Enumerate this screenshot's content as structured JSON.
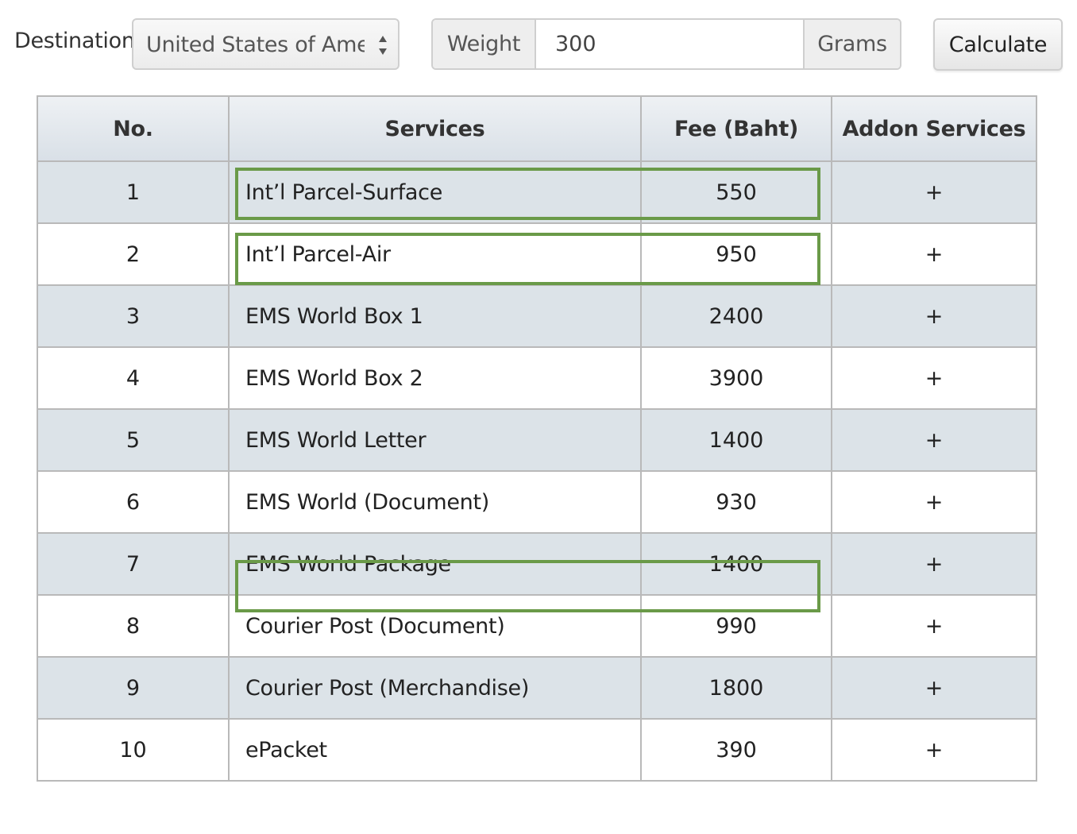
{
  "form": {
    "destination_label": "Destination",
    "destination_value": "United States of Ameri",
    "weight_label": "Weight",
    "weight_value": "300",
    "weight_unit": "Grams",
    "calculate_label": "Calculate"
  },
  "table": {
    "headers": {
      "no": "No.",
      "services": "Services",
      "fee": "Fee (Baht)",
      "addon": "Addon Services"
    },
    "rows": [
      {
        "no": "1",
        "service": "Int’l Parcel-Surface",
        "fee": "550",
        "addon": "+",
        "highlighted": true
      },
      {
        "no": "2",
        "service": "Int’l Parcel-Air",
        "fee": "950",
        "addon": "+",
        "highlighted": true
      },
      {
        "no": "3",
        "service": "EMS World Box 1",
        "fee": "2400",
        "addon": "+",
        "highlighted": false
      },
      {
        "no": "4",
        "service": "EMS World Box 2",
        "fee": "3900",
        "addon": "+",
        "highlighted": false
      },
      {
        "no": "5",
        "service": "EMS World Letter",
        "fee": "1400",
        "addon": "+",
        "highlighted": false
      },
      {
        "no": "6",
        "service": "EMS World (Document)",
        "fee": "930",
        "addon": "+",
        "highlighted": false
      },
      {
        "no": "7",
        "service": "EMS World Package",
        "fee": "1400",
        "addon": "+",
        "highlighted": true
      },
      {
        "no": "8",
        "service": "Courier Post (Document)",
        "fee": "990",
        "addon": "+",
        "highlighted": false
      },
      {
        "no": "9",
        "service": "Courier Post (Merchandise)",
        "fee": "1800",
        "addon": "+",
        "highlighted": false
      },
      {
        "no": "10",
        "service": "ePacket",
        "fee": "390",
        "addon": "+",
        "highlighted": false
      }
    ]
  },
  "colors": {
    "highlight_border": "#6a9a48",
    "odd_row": "#dce3e8",
    "even_row": "#ffffff"
  }
}
